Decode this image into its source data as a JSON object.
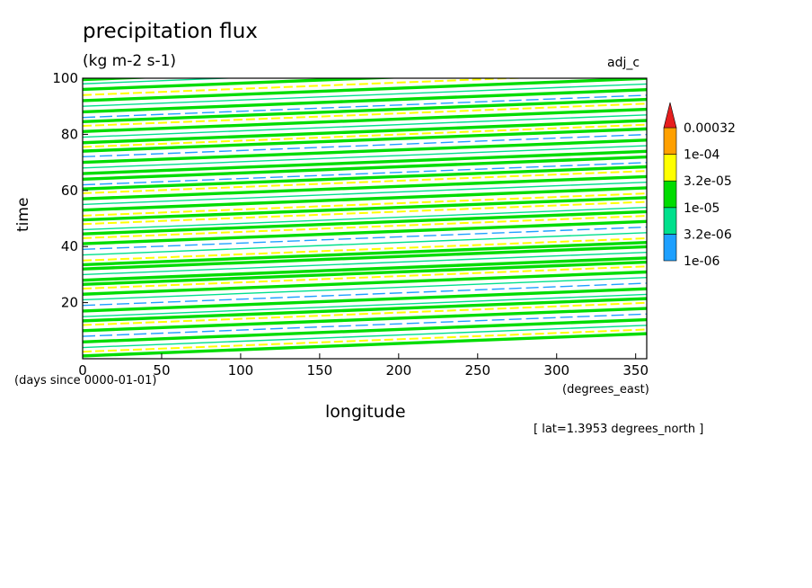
{
  "header": {
    "title": "precipitation flux",
    "units": "(kg m-2 s-1)",
    "tag": "adj_c"
  },
  "annotation": {
    "x_units": "(degrees_east)",
    "y_units": "(days since 0000-01-01)",
    "lat_note": "[ lat=1.3953 degrees_north ]"
  },
  "chart_data": {
    "type": "heatmap",
    "title": "precipitation flux",
    "subtitle": "(kg m-2 s-1)",
    "xlabel": "longitude",
    "ylabel": "time",
    "xlim": [
      0,
      357
    ],
    "ylim": [
      0,
      100
    ],
    "x_ticks": [
      0,
      50,
      100,
      150,
      200,
      250,
      300,
      350
    ],
    "y_ticks": [
      20,
      40,
      60,
      80,
      100
    ],
    "grid": false,
    "colorbar": {
      "placement": "right",
      "levels": [
        "1e-06",
        "3.2e-06",
        "1e-05",
        "3.2e-05",
        "1e-04",
        "0.00032"
      ],
      "colors": [
        "#1ea0ff",
        "#00e08c",
        "#00dc00",
        "#ffff00",
        "#ffa000",
        "#e61e1e"
      ],
      "extend": "max"
    },
    "pattern": {
      "description_type": "eastward-propagating bands",
      "slope_days_per_360deg": 8,
      "bands": [
        {
          "t0": 1,
          "level": 2
        },
        {
          "t0": 2.5,
          "level": 3
        },
        {
          "t0": 4,
          "level": 1
        },
        {
          "t0": 6,
          "level": 2
        },
        {
          "t0": 8,
          "level": 0
        },
        {
          "t0": 10,
          "level": 2
        },
        {
          "t0": 12,
          "level": 3
        },
        {
          "t0": 13.5,
          "level": 2
        },
        {
          "t0": 15,
          "level": 1
        },
        {
          "t0": 17,
          "level": 2
        },
        {
          "t0": 19,
          "level": 0
        },
        {
          "t0": 21,
          "level": 1
        },
        {
          "t0": 23,
          "level": 2
        },
        {
          "t0": 25,
          "level": 3
        },
        {
          "t0": 26.5,
          "level": 2
        },
        {
          "t0": 28,
          "level": 2
        },
        {
          "t0": 30,
          "level": 1
        },
        {
          "t0": 32,
          "level": 2
        },
        {
          "t0": 33.5,
          "level": 2
        },
        {
          "t0": 35,
          "level": 3
        },
        {
          "t0": 37,
          "level": 1
        },
        {
          "t0": 39,
          "level": 0
        },
        {
          "t0": 41,
          "level": 2
        },
        {
          "t0": 43,
          "level": 3
        },
        {
          "t0": 44.5,
          "level": 2
        },
        {
          "t0": 46,
          "level": 1
        },
        {
          "t0": 48,
          "level": 3
        },
        {
          "t0": 49.5,
          "level": 2
        },
        {
          "t0": 51,
          "level": 3
        },
        {
          "t0": 53,
          "level": 2
        },
        {
          "t0": 55,
          "level": 1
        },
        {
          "t0": 57,
          "level": 2
        },
        {
          "t0": 59,
          "level": 3
        },
        {
          "t0": 60.5,
          "level": 2
        },
        {
          "t0": 62,
          "level": 0
        },
        {
          "t0": 64,
          "level": 2
        },
        {
          "t0": 66,
          "level": 2
        },
        {
          "t0": 68,
          "level": 1
        },
        {
          "t0": 70,
          "level": 2
        },
        {
          "t0": 72,
          "level": 0
        },
        {
          "t0": 74,
          "level": 2
        },
        {
          "t0": 75.5,
          "level": 3
        },
        {
          "t0": 77,
          "level": 2
        },
        {
          "t0": 79,
          "level": 1
        },
        {
          "t0": 81,
          "level": 2
        },
        {
          "t0": 83,
          "level": 3
        },
        {
          "t0": 84.5,
          "level": 2
        },
        {
          "t0": 86,
          "level": 0
        },
        {
          "t0": 88,
          "level": 2
        },
        {
          "t0": 90,
          "level": 1
        },
        {
          "t0": 92,
          "level": 2
        },
        {
          "t0": 94,
          "level": 3
        },
        {
          "t0": 96,
          "level": 2
        },
        {
          "t0": 98,
          "level": 1
        },
        {
          "t0": 99.5,
          "level": 2
        }
      ]
    }
  }
}
